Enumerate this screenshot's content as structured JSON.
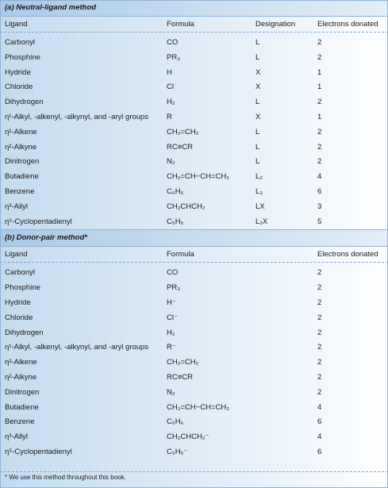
{
  "section_a": {
    "title": "(a) Neutral-ligand method",
    "headers": {
      "ligand": "Ligand",
      "formula": "Formula",
      "designation": "Designation",
      "electrons": "Electrons donated"
    },
    "rows": [
      {
        "ligand": "Carbonyl",
        "formula": "CO",
        "designation": "L",
        "electrons": "2"
      },
      {
        "ligand": "Phosphine",
        "formula": "PR₃",
        "designation": "L",
        "electrons": "2"
      },
      {
        "ligand": "Hydride",
        "formula": "H",
        "designation": "X",
        "electrons": "1"
      },
      {
        "ligand": "Chloride",
        "formula": "Cl",
        "designation": "X",
        "electrons": "1"
      },
      {
        "ligand": "Dihydrogen",
        "formula": "H₂",
        "designation": "L",
        "electrons": "2"
      },
      {
        "ligand": "η¹-Alkyl, -alkenyl, -alkynyl, and -aryl groups",
        "formula": "R",
        "designation": "X",
        "electrons": "1"
      },
      {
        "ligand": "η²-Alkene",
        "formula": "CH₂=CH₂",
        "designation": "L",
        "electrons": "2"
      },
      {
        "ligand": "η²-Alkyne",
        "formula": "RC≡CR",
        "designation": "L",
        "electrons": "2"
      },
      {
        "ligand": "Dinitrogen",
        "formula": "N₂",
        "designation": "L",
        "electrons": "2"
      },
      {
        "ligand": "Butadiene",
        "formula": "CH₂=CH−CH=CH₂",
        "designation": "L₂",
        "electrons": "4"
      },
      {
        "ligand": "Benzene",
        "formula": "C₆H₆",
        "designation": "L₃",
        "electrons": "6"
      },
      {
        "ligand": "η³-Allyl",
        "formula": "CH₂CHCH₂",
        "designation": "LX",
        "electrons": "3"
      },
      {
        "ligand": "η⁵-Cyclopentadienyl",
        "formula": "C₅H₅",
        "designation": "L₂X",
        "electrons": "5"
      }
    ]
  },
  "section_b": {
    "title": "(b) Donor-pair method*",
    "headers": {
      "ligand": "Ligand",
      "formula": "Formula",
      "electrons": "Electrons donated"
    },
    "rows": [
      {
        "ligand": "Carbonyl",
        "formula": "CO",
        "electrons": "2"
      },
      {
        "ligand": "Phosphine",
        "formula": "PR₃",
        "electrons": "2"
      },
      {
        "ligand": "Hydride",
        "formula": "H⁻",
        "electrons": "2"
      },
      {
        "ligand": "Chloride",
        "formula": "Cl⁻",
        "electrons": "2"
      },
      {
        "ligand": "Dihydrogen",
        "formula": "H₂",
        "electrons": "2"
      },
      {
        "ligand": "η¹-Alkyl, -alkenyl, -alkynyl, and -aryl groups",
        "formula": "R⁻",
        "electrons": "2"
      },
      {
        "ligand": "η²-Alkene",
        "formula": "CH₂=CH₂",
        "electrons": "2"
      },
      {
        "ligand": "η²-Alkyne",
        "formula": "RC≡CR",
        "electrons": "2"
      },
      {
        "ligand": "Dinitrogen",
        "formula": "N₂",
        "electrons": "2"
      },
      {
        "ligand": "Butadiene",
        "formula": "CH₂=CH−CH=CH₂",
        "electrons": "4"
      },
      {
        "ligand": "Benzene",
        "formula": "C₆H₆",
        "electrons": "6"
      },
      {
        "ligand": "η³-Allyl",
        "formula": "CH₂CHCH₂⁻",
        "electrons": "4"
      },
      {
        "ligand": "η⁵-Cyclopentadienyl",
        "formula": "C₅H₅⁻",
        "electrons": "6"
      }
    ]
  },
  "footnote": "* We use this method throughout this book."
}
